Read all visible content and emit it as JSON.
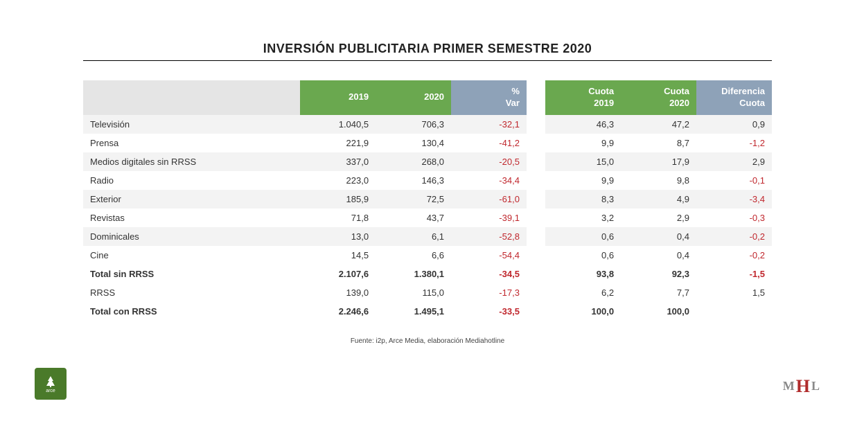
{
  "title": "INVERSIÓN PUBLICITARIA PRIMER SEMESTRE 2020",
  "source": "Fuente: i2p, Arce Media, elaboración Mediahotline",
  "colors": {
    "header_green": "#6aa84f",
    "header_grey": "#8ea2b8",
    "header_blank": "#e5e5e5",
    "zebra": "#f3f3f3",
    "negative": "#c0272d",
    "positive": "#333333",
    "logo_green": "#4a7a2a",
    "logo_red": "#b02b2b"
  },
  "table": {
    "type": "table",
    "columns": [
      {
        "key": "label",
        "header": "",
        "class": "label-head",
        "align": "left"
      },
      {
        "key": "y2019",
        "header": "2019",
        "class": "green",
        "align": "right"
      },
      {
        "key": "y2020",
        "header": "2020",
        "class": "green",
        "align": "right"
      },
      {
        "key": "var",
        "header": "% Var",
        "class": "grey",
        "align": "right",
        "signed": true
      },
      {
        "key": "gap1",
        "header": "",
        "class": "gap",
        "gap": true
      },
      {
        "key": "cuota2019",
        "header": "Cuota 2019",
        "class": "green",
        "align": "right"
      },
      {
        "key": "cuota2020",
        "header": "Cuota 2020",
        "class": "green",
        "align": "right"
      },
      {
        "key": "dif",
        "header": "Diferencia Cuota",
        "class": "grey",
        "align": "right",
        "signed": true
      }
    ],
    "rows": [
      {
        "label": "Televisión",
        "y2019": "1.040,5",
        "y2020": "706,3",
        "var": "-32,1",
        "cuota2019": "46,3",
        "cuota2020": "47,2",
        "dif": "0,9",
        "zebra": true
      },
      {
        "label": "Prensa",
        "y2019": "221,9",
        "y2020": "130,4",
        "var": "-41,2",
        "cuota2019": "9,9",
        "cuota2020": "8,7",
        "dif": "-1,2"
      },
      {
        "label": "Medios digitales sin RRSS",
        "y2019": "337,0",
        "y2020": "268,0",
        "var": "-20,5",
        "cuota2019": "15,0",
        "cuota2020": "17,9",
        "dif": "2,9",
        "zebra": true
      },
      {
        "label": "Radio",
        "y2019": "223,0",
        "y2020": "146,3",
        "var": "-34,4",
        "cuota2019": "9,9",
        "cuota2020": "9,8",
        "dif": "-0,1"
      },
      {
        "label": "Exterior",
        "y2019": "185,9",
        "y2020": "72,5",
        "var": "-61,0",
        "cuota2019": "8,3",
        "cuota2020": "4,9",
        "dif": "-3,4",
        "zebra": true
      },
      {
        "label": "Revistas",
        "y2019": "71,8",
        "y2020": "43,7",
        "var": "-39,1",
        "cuota2019": "3,2",
        "cuota2020": "2,9",
        "dif": "-0,3"
      },
      {
        "label": "Dominicales",
        "y2019": "13,0",
        "y2020": "6,1",
        "var": "-52,8",
        "cuota2019": "0,6",
        "cuota2020": "0,4",
        "dif": "-0,2",
        "zebra": true
      },
      {
        "label": "Cine",
        "y2019": "14,5",
        "y2020": "6,6",
        "var": "-54,4",
        "cuota2019": "0,6",
        "cuota2020": "0,4",
        "dif": "-0,2"
      },
      {
        "label": "Total sin RRSS",
        "y2019": "2.107,6",
        "y2020": "1.380,1",
        "var": "-34,5",
        "cuota2019": "93,8",
        "cuota2020": "92,3",
        "dif": "-1,5",
        "bold": true
      },
      {
        "label": " RRSS",
        "y2019": "139,0",
        "y2020": "115,0",
        "var": "-17,3",
        "cuota2019": "6,2",
        "cuota2020": "7,7",
        "dif": "1,5"
      },
      {
        "label": "Total con RRSS",
        "y2019": "2.246,6",
        "y2020": "1.495,1",
        "var": "-33,5",
        "cuota2019": "100,0",
        "cuota2020": "100,0",
        "dif": "",
        "bold": true
      }
    ]
  },
  "logos": {
    "left_text": "arce",
    "right": {
      "m": "M",
      "h": "H",
      "l": "L"
    }
  }
}
